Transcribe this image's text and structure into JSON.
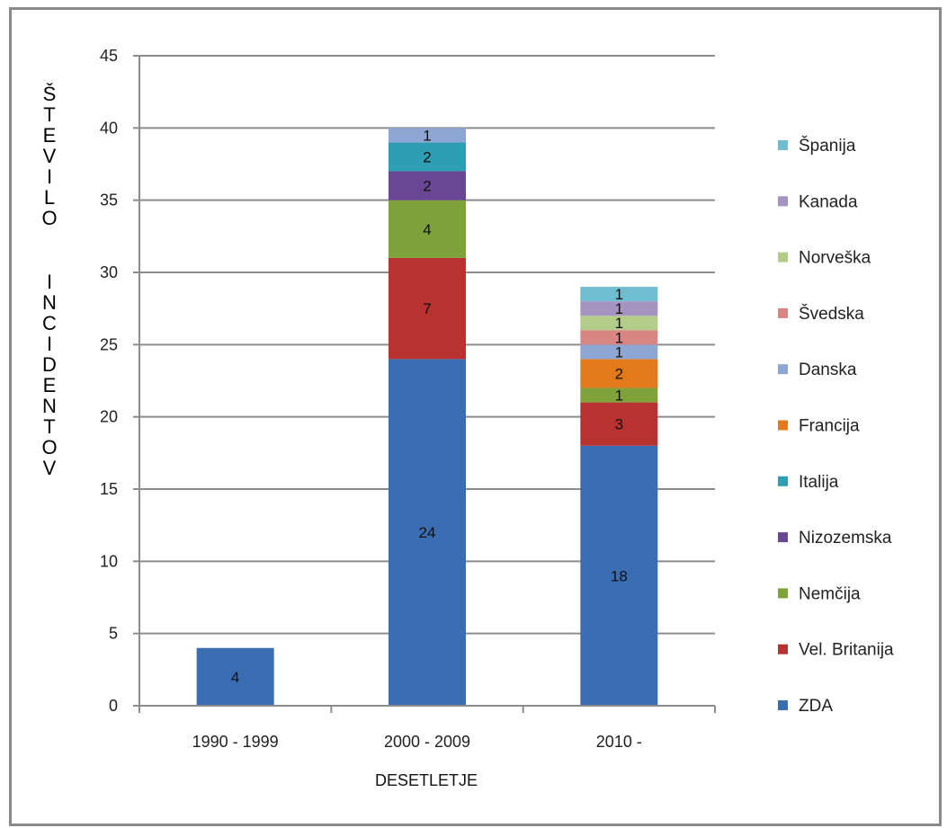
{
  "chart_data": {
    "type": "bar",
    "stacked": true,
    "title": "",
    "xlabel": "DESETLETJE",
    "ylabel": "ŠTEVILO INCIDENTOV",
    "ylabel_lines": [
      "ŠTEVILO",
      "INCIDENTOV"
    ],
    "ylim": [
      0,
      45
    ],
    "yticks": [
      "0",
      "5",
      "10",
      "15",
      "20",
      "25",
      "30",
      "35",
      "40",
      "45"
    ],
    "grid": true,
    "legend_position": "right",
    "categories": [
      "1990 - 1999",
      "2000 - 2009",
      "2010 -"
    ],
    "series": [
      {
        "name": "ZDA",
        "color": "#3b6db3",
        "values": [
          4,
          24,
          18
        ]
      },
      {
        "name": "Vel. Britanija",
        "color": "#b73231",
        "values": [
          0,
          7,
          3
        ]
      },
      {
        "name": "Nemčija",
        "color": "#7fa23a",
        "values": [
          0,
          4,
          1
        ]
      },
      {
        "name": "Nizozemska",
        "color": "#6a4795",
        "values": [
          0,
          2,
          0
        ]
      },
      {
        "name": "Italija",
        "color": "#2f9db3",
        "values": [
          0,
          2,
          0
        ]
      },
      {
        "name": "Francija",
        "color": "#e07a1a",
        "values": [
          0,
          0,
          2
        ]
      },
      {
        "name": "Danska",
        "color": "#8ea6d4",
        "values": [
          0,
          1,
          1
        ]
      },
      {
        "name": "Švedska",
        "color": "#d98583",
        "values": [
          0,
          0,
          1
        ]
      },
      {
        "name": "Norveška",
        "color": "#b3cc88",
        "values": [
          0,
          0,
          1
        ]
      },
      {
        "name": "Kanada",
        "color": "#a594c2",
        "values": [
          0,
          0,
          1
        ]
      },
      {
        "name": "Španija",
        "color": "#6fbdd1",
        "values": [
          0,
          0,
          1
        ]
      }
    ],
    "legend_order": [
      "Španija",
      "Kanada",
      "Norveška",
      "Švedska",
      "Danska",
      "Francija",
      "Italija",
      "Nizozemska",
      "Nemčija",
      "Vel. Britanija",
      "ZDA"
    ]
  }
}
